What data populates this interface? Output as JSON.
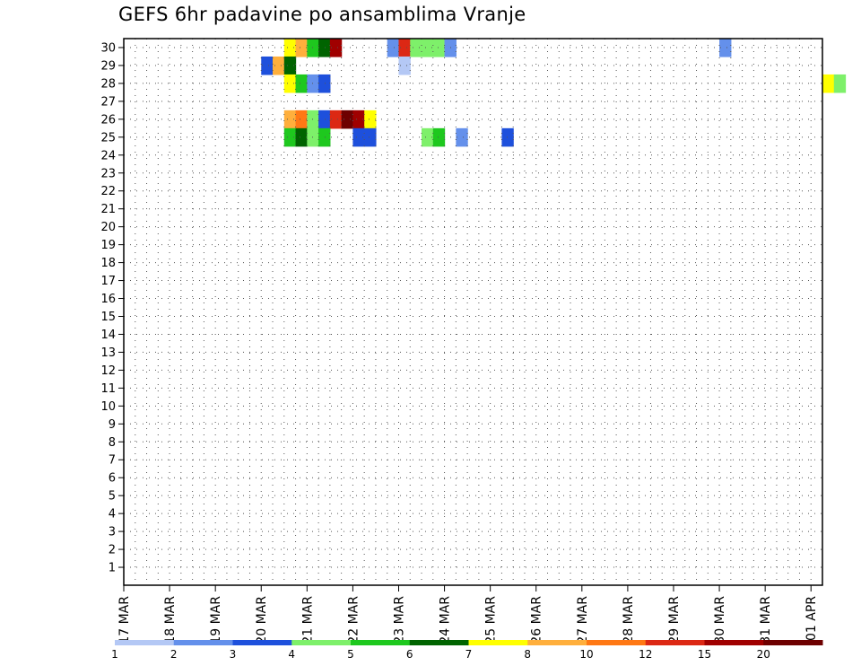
{
  "chart_data": {
    "type": "heatmap",
    "title": "GEFS 6hr padavine po ansamblima Vranje",
    "xlabel": "",
    "ylabel": "",
    "x_start": "2024-03-17T00:00",
    "x_end": "2024-04-01T00:00",
    "time_step_hours": 6,
    "x_tick_labels": [
      "17 MAR",
      "18 MAR",
      "19 MAR",
      "20 MAR",
      "21 MAR",
      "22 MAR",
      "23 MAR",
      "24 MAR",
      "25 MAR",
      "26 MAR",
      "27 MAR",
      "28 MAR",
      "29 MAR",
      "30 MAR",
      "31 MAR",
      "01 APR"
    ],
    "y_tick_labels": [
      "1",
      "2",
      "3",
      "4",
      "5",
      "6",
      "7",
      "8",
      "9",
      "10",
      "11",
      "12",
      "13",
      "14",
      "15",
      "16",
      "17",
      "18",
      "19",
      "20",
      "21",
      "22",
      "23",
      "24",
      "25",
      "26",
      "27",
      "28",
      "29",
      "30"
    ],
    "ylim": [
      0,
      30
    ],
    "grid": "dotted",
    "color_scale": {
      "levels": [
        "1",
        "2",
        "3",
        "4",
        "5",
        "6",
        "7",
        "8",
        "10",
        "12",
        "15",
        "20"
      ],
      "colors": [
        "#b4c8f5",
        "#6490eb",
        "#1e50dc",
        "#7ef06a",
        "#1ec81e",
        "#006400",
        "#ffff00",
        "#ffaf3c",
        "#ff7814",
        "#dc2814",
        "#a00000",
        "#6e0000"
      ]
    },
    "cells": [
      {
        "member": 30,
        "time": "2024-03-20T12:00",
        "cls": 6
      },
      {
        "member": 30,
        "time": "2024-03-20T18:00",
        "cls": 7
      },
      {
        "member": 30,
        "time": "2024-03-21T00:00",
        "cls": 4
      },
      {
        "member": 30,
        "time": "2024-03-21T06:00",
        "cls": 5
      },
      {
        "member": 30,
        "time": "2024-03-21T12:00",
        "cls": 10
      },
      {
        "member": 30,
        "time": "2024-03-22T18:00",
        "cls": 1
      },
      {
        "member": 30,
        "time": "2024-03-23T00:00",
        "cls": 9
      },
      {
        "member": 30,
        "time": "2024-03-23T06:00",
        "cls": 3
      },
      {
        "member": 30,
        "time": "2024-03-23T12:00",
        "cls": 3
      },
      {
        "member": 30,
        "time": "2024-03-23T18:00",
        "cls": 3
      },
      {
        "member": 30,
        "time": "2024-03-24T00:00",
        "cls": 1
      },
      {
        "member": 30,
        "time": "2024-03-30T00:00",
        "cls": 1
      },
      {
        "member": 29,
        "time": "2024-03-20T00:00",
        "cls": 2
      },
      {
        "member": 29,
        "time": "2024-03-20T06:00",
        "cls": 7
      },
      {
        "member": 29,
        "time": "2024-03-20T12:00",
        "cls": 5
      },
      {
        "member": 29,
        "time": "2024-03-23T00:00",
        "cls": 0
      },
      {
        "member": 28,
        "time": "2024-03-20T12:00",
        "cls": 6
      },
      {
        "member": 28,
        "time": "2024-03-20T18:00",
        "cls": 4
      },
      {
        "member": 28,
        "time": "2024-03-21T00:00",
        "cls": 1
      },
      {
        "member": 28,
        "time": "2024-03-21T06:00",
        "cls": 2
      },
      {
        "member": 28,
        "time": "2024-04-01T06:00",
        "cls": 6
      },
      {
        "member": 28,
        "time": "2024-04-01T12:00",
        "cls": 3
      },
      {
        "member": 26,
        "time": "2024-03-20T12:00",
        "cls": 7
      },
      {
        "member": 26,
        "time": "2024-03-20T18:00",
        "cls": 8
      },
      {
        "member": 26,
        "time": "2024-03-21T00:00",
        "cls": 3
      },
      {
        "member": 26,
        "time": "2024-03-21T06:00",
        "cls": 2
      },
      {
        "member": 26,
        "time": "2024-03-21T12:00",
        "cls": 9
      },
      {
        "member": 26,
        "time": "2024-03-21T18:00",
        "cls": 11
      },
      {
        "member": 26,
        "time": "2024-03-22T00:00",
        "cls": 10
      },
      {
        "member": 26,
        "time": "2024-03-22T06:00",
        "cls": 6
      },
      {
        "member": 25,
        "time": "2024-03-20T12:00",
        "cls": 4
      },
      {
        "member": 25,
        "time": "2024-03-20T18:00",
        "cls": 5
      },
      {
        "member": 25,
        "time": "2024-03-21T00:00",
        "cls": 3
      },
      {
        "member": 25,
        "time": "2024-03-21T06:00",
        "cls": 4
      },
      {
        "member": 25,
        "time": "2024-03-22T00:00",
        "cls": 2
      },
      {
        "member": 25,
        "time": "2024-03-22T06:00",
        "cls": 2
      },
      {
        "member": 25,
        "time": "2024-03-23T12:00",
        "cls": 3
      },
      {
        "member": 25,
        "time": "2024-03-23T18:00",
        "cls": 4
      },
      {
        "member": 25,
        "time": "2024-03-24T06:00",
        "cls": 1
      },
      {
        "member": 25,
        "time": "2024-03-25T06:00",
        "cls": 2
      }
    ]
  },
  "legend": {
    "labels": [
      "1",
      "2",
      "3",
      "4",
      "5",
      "6",
      "7",
      "8",
      "10",
      "12",
      "15",
      "20"
    ]
  }
}
